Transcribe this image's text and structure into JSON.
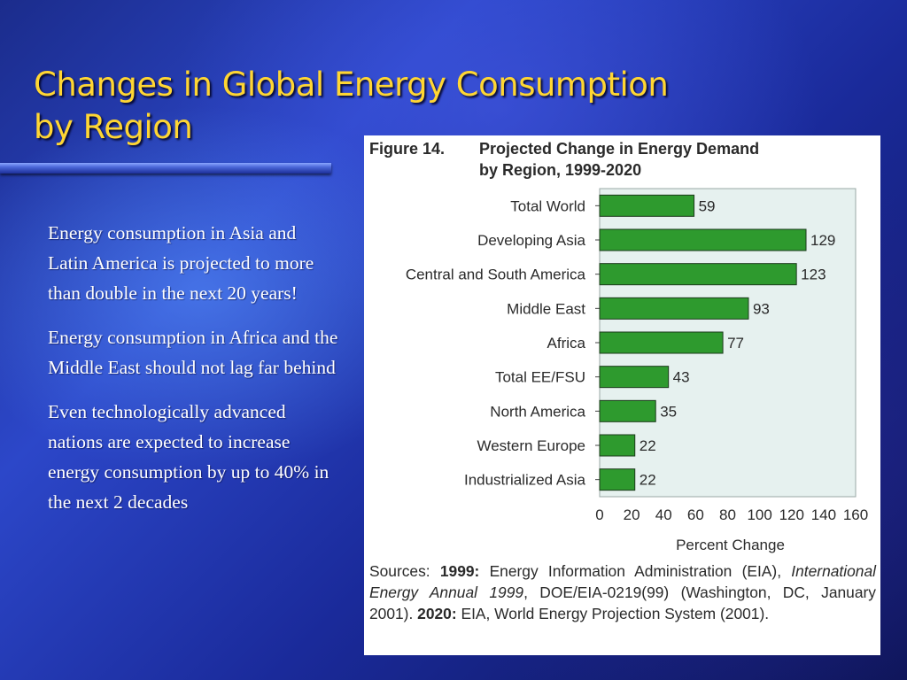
{
  "slide": {
    "title_line1": "Changes in Global Energy Consumption",
    "title_line2": "by Region",
    "bullets": [
      "Energy consumption in Asia and Latin America is projected to more than double in the next 20 years!",
      "Energy consumption in Africa and the Middle East should not lag far behind",
      "Even technologically advanced nations are expected to increase energy consumption by up to 40% in the next 2 decades"
    ]
  },
  "colors": {
    "title": "#ffd633",
    "bar": "#2e9a2e",
    "plot_bg": "#e6f1ef"
  },
  "figure": {
    "number": "Figure 14.",
    "title_line1": "Projected Change in Energy Demand",
    "title_line2": "by Region, 1999-2020",
    "sources": {
      "p1": "Sources: ",
      "b1": "1999:",
      "p2": " Energy Information Administration (EIA), ",
      "i1": "International Energy Annual 1999",
      "p3": ", DOE/EIA-0219(99) (Washington, DC, January 2001). ",
      "b2": "2020:",
      "p4": " EIA, World Energy Projection System (2001)."
    }
  },
  "chart_data": {
    "type": "bar",
    "orientation": "horizontal",
    "title": "Projected Change in Energy Demand by Region, 1999-2020",
    "xlabel": "Percent Change",
    "ylabel": "",
    "xlim": [
      0,
      160
    ],
    "xticks": [
      0,
      20,
      40,
      60,
      80,
      100,
      120,
      140,
      160
    ],
    "categories": [
      "Total World",
      "Developing Asia",
      "Central and South America",
      "Middle East",
      "Africa",
      "Total EE/FSU",
      "North America",
      "Western Europe",
      "Industrialized Asia"
    ],
    "values": [
      59,
      129,
      123,
      93,
      77,
      43,
      35,
      22,
      22
    ],
    "data_labels": [
      "59",
      "129",
      "123",
      "93",
      "77",
      "43",
      "35",
      "22",
      "22"
    ],
    "grid": false,
    "legend": "none"
  }
}
